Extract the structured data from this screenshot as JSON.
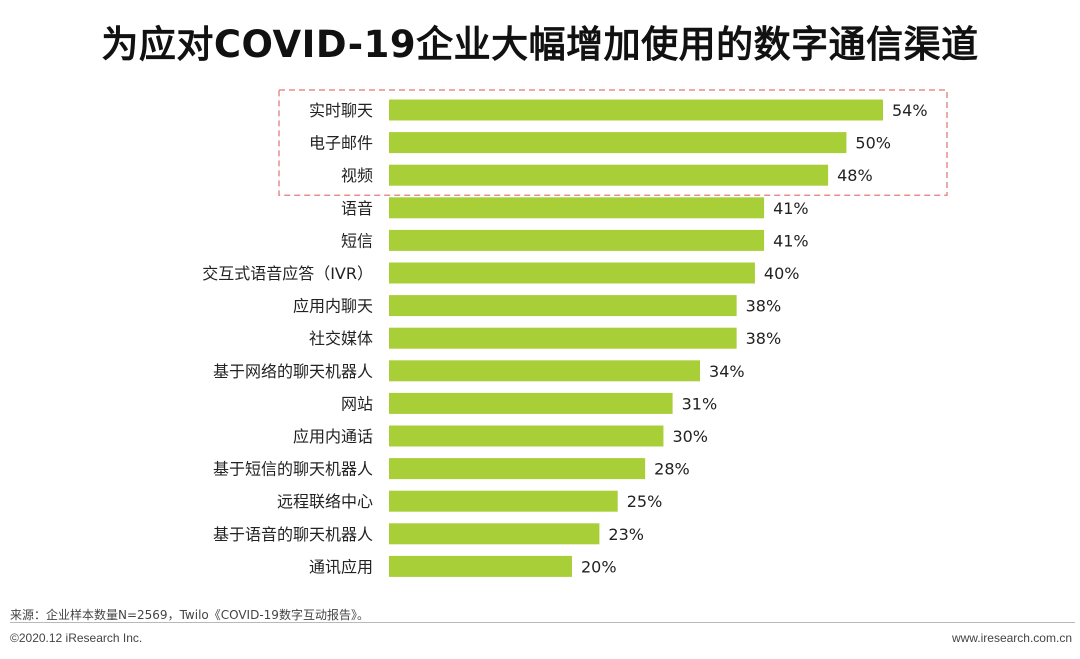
{
  "title": "为应对COVID-19企业大幅增加使用的数字通信渠道",
  "chart_data": {
    "type": "bar",
    "orientation": "horizontal",
    "categories": [
      "实时聊天",
      "电子邮件",
      "视频",
      "语音",
      "短信",
      "交互式语音应答（IVR）",
      "应用内聊天",
      "社交媒体",
      "基于网络的聊天机器人",
      "网站",
      "应用内通话",
      "基于短信的聊天机器人",
      "远程联络中心",
      "基于语音的聊天机器人",
      "通讯应用"
    ],
    "values": [
      54,
      50,
      48,
      41,
      41,
      40,
      38,
      38,
      34,
      31,
      30,
      28,
      25,
      23,
      20
    ],
    "value_labels": [
      "54%",
      "50%",
      "48%",
      "41%",
      "41%",
      "40%",
      "38%",
      "38%",
      "34%",
      "31%",
      "30%",
      "28%",
      "25%",
      "23%",
      "20%"
    ],
    "bar_color": "#a8cf38",
    "highlight_color": "#e98d8d",
    "highlighted_categories": [
      "实时聊天",
      "电子邮件",
      "视频"
    ],
    "xlim": [
      0,
      54
    ],
    "grid": false,
    "legend": "none"
  },
  "footer": {
    "source": "来源：企业样本数量N=2569，Twilo《COVID-19数字互动报告》。",
    "copyright": "©2020.12 iResearch Inc.",
    "website": "www.iresearch.com.cn"
  }
}
